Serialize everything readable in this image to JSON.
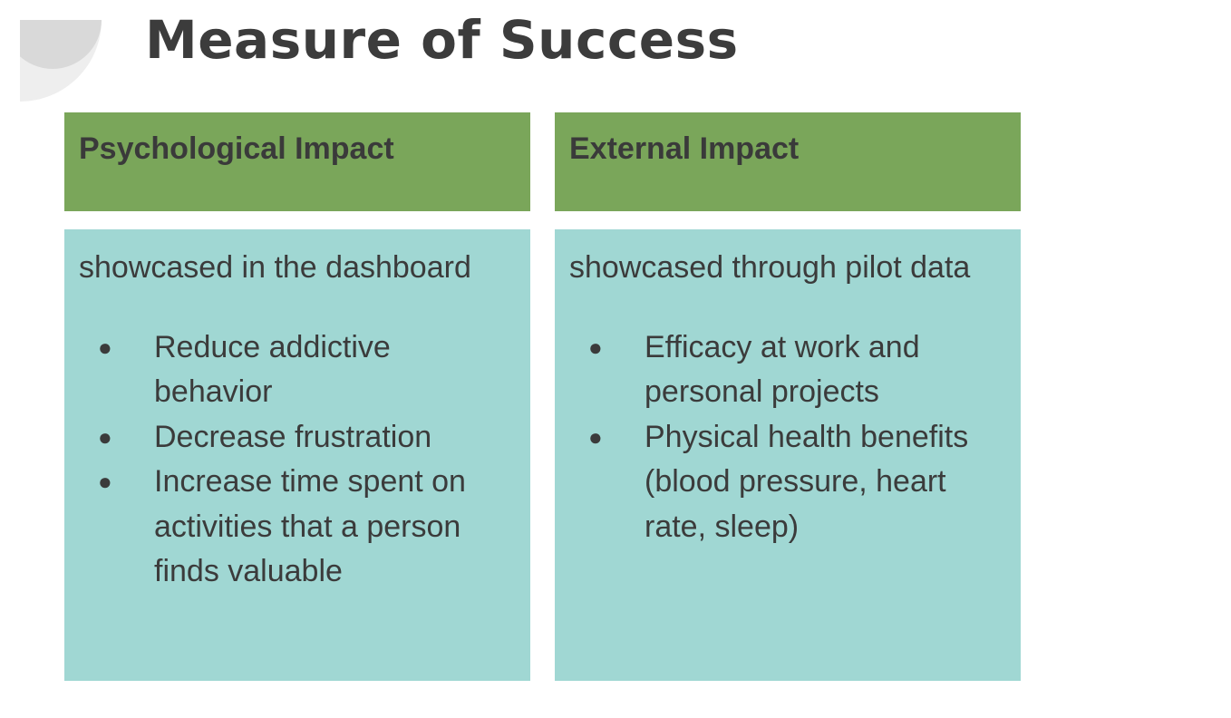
{
  "title": "Measure of Success",
  "columns": [
    {
      "header": "Psychological Impact",
      "subtitle": "showcased in the dashboard",
      "bullets": [
        "Reduce addictive behavior",
        "Decrease frustration",
        "Increase time spent on activities that a person finds valuable"
      ]
    },
    {
      "header": "External Impact",
      "subtitle": "showcased through pilot data",
      "bullets": [
        "Efficacy at work and personal projects",
        "Physical health benefits (blood pressure, heart rate, sleep)"
      ]
    }
  ],
  "colors": {
    "header_bg": "#7aa65a",
    "body_bg": "#a0d7d3",
    "text": "#3b3b3b",
    "decoration": "#d9d9d9"
  },
  "icons": {
    "bullet": "bullet-dot-icon",
    "decoration": "quarter-circle-decoration"
  }
}
